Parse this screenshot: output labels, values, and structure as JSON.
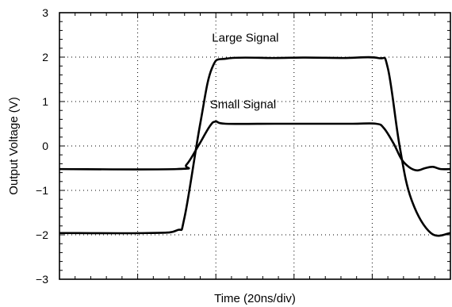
{
  "chart_data": {
    "type": "line",
    "xlabel": "Time (20ns/div)",
    "ylabel": "Output Voltage (V)",
    "ylim": [
      -3,
      3
    ],
    "y_ticks": [
      "3",
      "2",
      "1",
      "0",
      "−1",
      "−2",
      "−3"
    ],
    "xlim": [
      0,
      10
    ],
    "x_divisions": 5,
    "grid": true,
    "grid_style": "dotted",
    "series": [
      {
        "name": "Large Signal",
        "color": "#000000",
        "x": [
          0,
          2.25,
          3.0,
          3.2,
          3.6,
          3.9,
          4.3,
          5.5,
          6.3,
          7.25,
          8.15,
          8.4,
          8.7,
          9.0,
          9.5,
          10
        ],
        "y": [
          -1.96,
          -1.96,
          -1.9,
          -1.6,
          0.5,
          1.75,
          1.97,
          1.98,
          1.99,
          1.98,
          1.98,
          1.75,
          0.0,
          -1.2,
          -1.96,
          -1.96
        ],
        "annotation_at": [
          3.9,
          2.35
        ]
      },
      {
        "name": "Small Signal",
        "color": "#000000",
        "x": [
          0,
          3.0,
          3.25,
          3.55,
          3.85,
          4.0,
          4.25,
          5.5,
          6.5,
          7.5,
          8.1,
          8.3,
          8.55,
          8.75,
          8.95,
          9.15,
          9.35,
          9.55,
          9.75,
          10
        ],
        "y": [
          -0.52,
          -0.52,
          -0.42,
          0.0,
          0.45,
          0.55,
          0.5,
          0.5,
          0.5,
          0.5,
          0.5,
          0.4,
          0.05,
          -0.3,
          -0.48,
          -0.55,
          -0.5,
          -0.47,
          -0.52,
          -0.52
        ],
        "annotation_at": [
          3.85,
          0.85
        ]
      }
    ]
  }
}
